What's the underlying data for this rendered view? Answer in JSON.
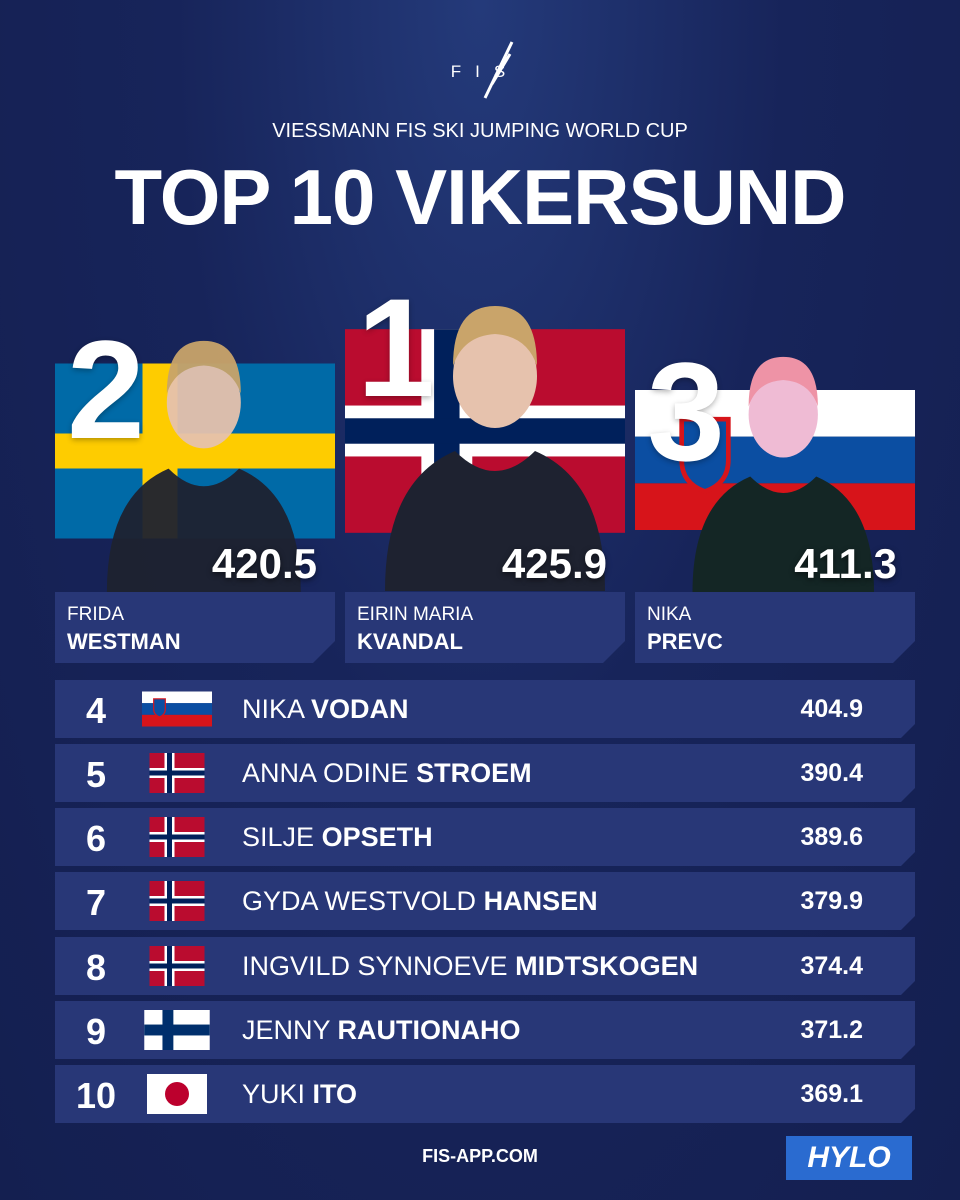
{
  "header": {
    "logo": "FIS",
    "subtitle": "VIESSMANN FIS SKI JUMPING WORLD CUP",
    "title": "TOP 10 VIKERSUND"
  },
  "podium": [
    {
      "rank": 2,
      "first_name": "FRIDA",
      "last_name": "WESTMAN",
      "score": 420.5
    },
    {
      "rank": 1,
      "first_name": "EIRIN MARIA",
      "last_name": "KVANDAL",
      "score": 425.9
    },
    {
      "rank": 3,
      "first_name": "NIKA",
      "last_name": "PREVC",
      "score": 411.3
    }
  ],
  "rows": [
    {
      "rank": 4,
      "first_name": "NIKA",
      "last_name": "VODAN",
      "score": 404.9
    },
    {
      "rank": 5,
      "first_name": "ANNA ODINE",
      "last_name": "STROEM",
      "score": 390.4
    },
    {
      "rank": 6,
      "first_name": "SILJE",
      "last_name": "OPSETH",
      "score": 389.6
    },
    {
      "rank": 7,
      "first_name": "GYDA WESTVOLD",
      "last_name": "HANSEN",
      "score": 379.9
    },
    {
      "rank": 8,
      "first_name": "INGVILD SYNNOEVE",
      "last_name": "MIDTSKOGEN",
      "score": 374.4
    },
    {
      "rank": 9,
      "first_name": "JENNY",
      "last_name": "RAUTIONAHO",
      "score": 371.2
    },
    {
      "rank": 10,
      "first_name": "YUKI",
      "last_name": "ITO",
      "score": 369.1
    }
  ],
  "footer": {
    "url": "FIS-APP.COM",
    "sponsor": "HYLO"
  }
}
